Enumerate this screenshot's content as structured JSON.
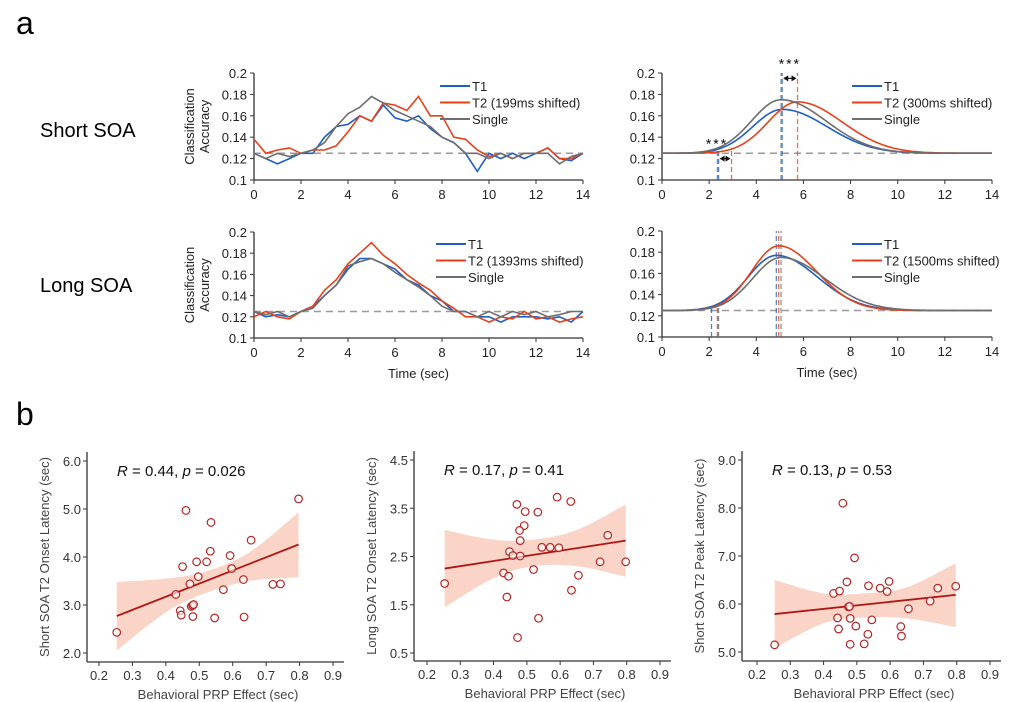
{
  "panel_letters": {
    "a": "a",
    "b": "b"
  },
  "row_labels": {
    "short": "Short SOA",
    "long": "Long SOA"
  },
  "colors": {
    "T1": "#1f5fc4",
    "T2": "#e5421b",
    "Single": "#6e6e6e",
    "chance": "#9a9a9a",
    "scatter_point": "#b52525",
    "fit_line": "#b01515",
    "ci_band": "#f8c5b3"
  },
  "chart_data": [
    {
      "type": "line",
      "id": "short-raw",
      "ylabel": [
        "Classification",
        "Accuracy"
      ],
      "xlabel": "",
      "xlim": [
        0,
        14
      ],
      "ylim": [
        0.1,
        0.2
      ],
      "xticks": [
        "0",
        "2",
        "4",
        "6",
        "8",
        "10",
        "12",
        "14"
      ],
      "yticks": [
        "0.1",
        "0.12",
        "0.14",
        "0.16",
        "0.18",
        "0.2"
      ],
      "chance": 0.125,
      "x": [
        0,
        0.5,
        1,
        1.5,
        2,
        2.5,
        3,
        3.5,
        4,
        4.5,
        5,
        5.5,
        6,
        6.5,
        7,
        7.5,
        8,
        8.5,
        9,
        9.5,
        10,
        10.5,
        11,
        11.5,
        12,
        12.5,
        13,
        13.5,
        14
      ],
      "series": [
        {
          "name": "T1",
          "values": [
            0.125,
            0.12,
            0.115,
            0.12,
            0.125,
            0.125,
            0.14,
            0.15,
            0.152,
            0.16,
            0.155,
            0.17,
            0.158,
            0.155,
            0.16,
            0.148,
            0.14,
            0.135,
            0.125,
            0.108,
            0.125,
            0.12,
            0.125,
            0.12,
            0.125,
            0.13,
            0.12,
            0.118,
            0.125
          ]
        },
        {
          "name": "T2 (199ms shifted)",
          "values": [
            0.138,
            0.125,
            0.128,
            0.13,
            0.125,
            0.128,
            0.128,
            0.132,
            0.145,
            0.16,
            0.155,
            0.172,
            0.17,
            0.165,
            0.178,
            0.16,
            0.16,
            0.14,
            0.138,
            0.128,
            0.122,
            0.125,
            0.12,
            0.125,
            0.125,
            0.13,
            0.12,
            0.12,
            0.125
          ]
        },
        {
          "name": "Single",
          "values": [
            0.125,
            0.12,
            0.125,
            0.122,
            0.125,
            0.128,
            0.135,
            0.15,
            0.162,
            0.168,
            0.178,
            0.172,
            0.165,
            0.16,
            0.155,
            0.15,
            0.14,
            0.135,
            0.125,
            0.125,
            0.12,
            0.125,
            0.12,
            0.125,
            0.125,
            0.125,
            0.115,
            0.122,
            0.125
          ]
        }
      ]
    },
    {
      "type": "line",
      "id": "short-fit",
      "xlabel": "",
      "xlim": [
        0,
        14
      ],
      "ylim": [
        0.1,
        0.2
      ],
      "xticks": [
        "0",
        "2",
        "4",
        "6",
        "8",
        "10",
        "12",
        "14"
      ],
      "yticks": [
        "0.1",
        "0.12",
        "0.14",
        "0.16",
        "0.18",
        "0.2"
      ],
      "chance": 0.125,
      "series": [
        {
          "name": "T1",
          "baseline": 0.125,
          "peak_time": 5.1,
          "peak_value": 0.166,
          "sigma_left": 1.25,
          "sigma_right": 1.9,
          "onset": 2.4
        },
        {
          "name": "T2 (300ms shifted)",
          "baseline": 0.125,
          "peak_time": 5.75,
          "peak_value": 0.173,
          "sigma_left": 1.25,
          "sigma_right": 1.9,
          "onset": 2.95
        },
        {
          "name": "Single",
          "baseline": 0.125,
          "peak_time": 5.05,
          "peak_value": 0.175,
          "sigma_left": 1.25,
          "sigma_right": 1.9,
          "onset": 2.35
        }
      ],
      "annotations": [
        {
          "text": "***",
          "between": [
            2.4,
            2.95
          ],
          "level": 0.12
        },
        {
          "text": "***",
          "between": [
            5.1,
            5.75
          ],
          "level": 0.195
        }
      ]
    },
    {
      "type": "line",
      "id": "long-raw",
      "ylabel": [
        "Classification",
        "Accuracy"
      ],
      "xlabel": "Time (sec)",
      "xlim": [
        0,
        14
      ],
      "ylim": [
        0.1,
        0.2
      ],
      "xticks": [
        "0",
        "2",
        "4",
        "6",
        "8",
        "10",
        "12",
        "14"
      ],
      "yticks": [
        "0.1",
        "0.12",
        "0.14",
        "0.16",
        "0.18",
        "0.2"
      ],
      "chance": 0.125,
      "x": [
        0,
        0.5,
        1,
        1.5,
        2,
        2.5,
        3,
        3.5,
        4,
        4.5,
        5,
        5.5,
        6,
        6.5,
        7,
        7.5,
        8,
        8.5,
        9,
        9.5,
        10,
        10.5,
        11,
        11.5,
        12,
        12.5,
        13,
        13.5,
        14
      ],
      "series": [
        {
          "name": "T1",
          "values": [
            0.125,
            0.12,
            0.122,
            0.12,
            0.125,
            0.13,
            0.14,
            0.15,
            0.165,
            0.175,
            0.175,
            0.17,
            0.165,
            0.155,
            0.15,
            0.14,
            0.135,
            0.125,
            0.125,
            0.12,
            0.12,
            0.115,
            0.12,
            0.12,
            0.12,
            0.118,
            0.12,
            0.115,
            0.125
          ]
        },
        {
          "name": "T2 (1393ms shifted)",
          "values": [
            0.12,
            0.125,
            0.12,
            0.118,
            0.125,
            0.13,
            0.145,
            0.155,
            0.17,
            0.18,
            0.19,
            0.178,
            0.17,
            0.16,
            0.152,
            0.145,
            0.135,
            0.128,
            0.12,
            0.12,
            0.115,
            0.12,
            0.118,
            0.125,
            0.118,
            0.12,
            0.115,
            0.118,
            0.12
          ]
        },
        {
          "name": "Single",
          "values": [
            0.125,
            0.122,
            0.125,
            0.12,
            0.125,
            0.128,
            0.14,
            0.15,
            0.168,
            0.172,
            0.175,
            0.17,
            0.162,
            0.155,
            0.148,
            0.14,
            0.13,
            0.125,
            0.125,
            0.12,
            0.125,
            0.12,
            0.125,
            0.122,
            0.125,
            0.12,
            0.122,
            0.125,
            0.125
          ]
        }
      ]
    },
    {
      "type": "line",
      "id": "long-fit",
      "xlabel": "Time (sec)",
      "xlim": [
        0,
        14
      ],
      "ylim": [
        0.1,
        0.2
      ],
      "xticks": [
        "0",
        "2",
        "4",
        "6",
        "8",
        "10",
        "12",
        "14"
      ],
      "yticks": [
        "0.1",
        "0.12",
        "0.14",
        "0.16",
        "0.18",
        "0.2"
      ],
      "chance": 0.125,
      "series": [
        {
          "name": "T1",
          "baseline": 0.125,
          "peak_time": 4.85,
          "peak_value": 0.177,
          "sigma_left": 1.2,
          "sigma_right": 1.75,
          "onset": 2.1
        },
        {
          "name": "T2 (1500ms shifted)",
          "baseline": 0.125,
          "peak_time": 4.95,
          "peak_value": 0.186,
          "sigma_left": 1.15,
          "sigma_right": 1.6,
          "onset": 2.35
        },
        {
          "name": "Single",
          "baseline": 0.125,
          "peak_time": 5.05,
          "peak_value": 0.175,
          "sigma_left": 1.2,
          "sigma_right": 1.85,
          "onset": 2.4
        }
      ],
      "annotations": []
    },
    {
      "type": "scatter",
      "id": "scatter-short-onset",
      "xlabel": "Behavioral PRP Effect (sec)",
      "ylabel": "Short SOA T2 Onset Latency (sec)",
      "xlim": [
        0.2,
        0.9
      ],
      "ylim": [
        2.0,
        6.0
      ],
      "xticks": [
        "0.2",
        "0.3",
        "0.4",
        "0.5",
        "0.6",
        "0.7",
        "0.8",
        "0.9"
      ],
      "yticks": [
        "2.0",
        "3.0",
        "4.0",
        "5.0",
        "6.0"
      ],
      "stat": {
        "r_label": "R",
        "r_text": " = 0.44, ",
        "p_label": "p",
        "p_text": " = 0.026"
      },
      "points": [
        [
          0.253,
          2.43
        ],
        [
          0.46,
          4.97
        ],
        [
          0.535,
          4.72
        ],
        [
          0.797,
          5.21
        ],
        [
          0.655,
          4.35
        ],
        [
          0.533,
          4.12
        ],
        [
          0.592,
          4.03
        ],
        [
          0.45,
          3.8
        ],
        [
          0.492,
          3.9
        ],
        [
          0.522,
          3.9
        ],
        [
          0.597,
          3.76
        ],
        [
          0.497,
          3.59
        ],
        [
          0.472,
          3.44
        ],
        [
          0.43,
          3.22
        ],
        [
          0.572,
          3.32
        ],
        [
          0.632,
          3.53
        ],
        [
          0.72,
          3.43
        ],
        [
          0.743,
          3.44
        ],
        [
          0.476,
          2.97
        ],
        [
          0.48,
          2.99
        ],
        [
          0.483,
          3.01
        ],
        [
          0.443,
          2.88
        ],
        [
          0.446,
          2.79
        ],
        [
          0.481,
          2.76
        ],
        [
          0.546,
          2.73
        ],
        [
          0.634,
          2.75
        ]
      ],
      "fit": {
        "x": [
          0.253,
          0.797
        ],
        "y": [
          2.77,
          4.26
        ]
      },
      "ci": {
        "x": [
          0.253,
          0.4,
          0.52,
          0.65,
          0.797
        ],
        "lower": [
          2.05,
          2.85,
          3.25,
          3.5,
          3.58
        ],
        "upper": [
          3.48,
          3.55,
          3.7,
          4.1,
          4.93
        ]
      }
    },
    {
      "type": "scatter",
      "id": "scatter-long-onset",
      "xlabel": "Behavioral PRP Effect (sec)",
      "ylabel": "Long SOA T2 Onset Latency (sec)",
      "xlim": [
        0.2,
        0.9
      ],
      "ylim": [
        0.5,
        4.5
      ],
      "xticks": [
        "0.2",
        "0.3",
        "0.4",
        "0.5",
        "0.6",
        "0.7",
        "0.8",
        "0.9"
      ],
      "yticks": [
        "0.5",
        "1.5",
        "2.5",
        "3.5",
        "4.5"
      ],
      "stat": {
        "r_label": "R",
        "r_text": " = 0.17, ",
        "p_label": "p",
        "p_text": " = 0.41"
      },
      "points": [
        [
          0.253,
          1.94
        ],
        [
          0.47,
          3.58
        ],
        [
          0.495,
          3.43
        ],
        [
          0.533,
          3.42
        ],
        [
          0.591,
          3.73
        ],
        [
          0.632,
          3.64
        ],
        [
          0.492,
          3.14
        ],
        [
          0.478,
          3.04
        ],
        [
          0.48,
          2.83
        ],
        [
          0.448,
          2.6
        ],
        [
          0.458,
          2.52
        ],
        [
          0.48,
          2.51
        ],
        [
          0.545,
          2.69
        ],
        [
          0.57,
          2.69
        ],
        [
          0.596,
          2.68
        ],
        [
          0.743,
          2.94
        ],
        [
          0.72,
          2.39
        ],
        [
          0.797,
          2.39
        ],
        [
          0.52,
          2.23
        ],
        [
          0.43,
          2.16
        ],
        [
          0.445,
          2.09
        ],
        [
          0.655,
          2.11
        ],
        [
          0.634,
          1.8
        ],
        [
          0.44,
          1.66
        ],
        [
          0.535,
          1.22
        ],
        [
          0.472,
          0.82
        ]
      ],
      "fit": {
        "x": [
          0.253,
          0.797
        ],
        "y": [
          2.25,
          2.83
        ]
      },
      "ci": {
        "x": [
          0.253,
          0.4,
          0.52,
          0.65,
          0.797
        ],
        "lower": [
          1.45,
          2.05,
          2.3,
          2.3,
          2.08
        ],
        "upper": [
          3.05,
          2.85,
          2.85,
          3.05,
          3.58
        ]
      }
    },
    {
      "type": "scatter",
      "id": "scatter-short-peak",
      "xlabel": "Behavioral PRP Effect (sec)",
      "ylabel": "Short SOA T2 Peak Latency (sec)",
      "xlim": [
        0.2,
        0.9
      ],
      "ylim": [
        5.0,
        9.0
      ],
      "xticks": [
        "0.2",
        "0.3",
        "0.4",
        "0.5",
        "0.6",
        "0.7",
        "0.8",
        "0.9"
      ],
      "yticks": [
        "5.0",
        "6.0",
        "7.0",
        "8.0",
        "9.0"
      ],
      "stat": {
        "r_label": "R",
        "r_text": " = 0.13, ",
        "p_label": "p",
        "p_text": " = 0.53"
      },
      "points": [
        [
          0.253,
          5.15
        ],
        [
          0.458,
          8.1
        ],
        [
          0.493,
          6.96
        ],
        [
          0.47,
          6.46
        ],
        [
          0.43,
          6.22
        ],
        [
          0.448,
          6.27
        ],
        [
          0.535,
          6.38
        ],
        [
          0.57,
          6.33
        ],
        [
          0.591,
          6.26
        ],
        [
          0.597,
          6.47
        ],
        [
          0.743,
          6.33
        ],
        [
          0.797,
          6.37
        ],
        [
          0.72,
          6.06
        ],
        [
          0.475,
          5.94
        ],
        [
          0.478,
          5.95
        ],
        [
          0.655,
          5.9
        ],
        [
          0.442,
          5.71
        ],
        [
          0.48,
          5.7
        ],
        [
          0.545,
          5.67
        ],
        [
          0.445,
          5.48
        ],
        [
          0.497,
          5.54
        ],
        [
          0.632,
          5.53
        ],
        [
          0.533,
          5.37
        ],
        [
          0.634,
          5.33
        ],
        [
          0.48,
          5.16
        ],
        [
          0.522,
          5.17
        ]
      ],
      "fit": {
        "x": [
          0.253,
          0.797
        ],
        "y": [
          5.79,
          6.19
        ]
      },
      "ci": {
        "x": [
          0.253,
          0.4,
          0.52,
          0.65,
          0.797
        ],
        "lower": [
          5.08,
          5.6,
          5.72,
          5.7,
          5.52
        ],
        "upper": [
          6.5,
          6.22,
          6.22,
          6.35,
          6.85
        ]
      }
    }
  ]
}
